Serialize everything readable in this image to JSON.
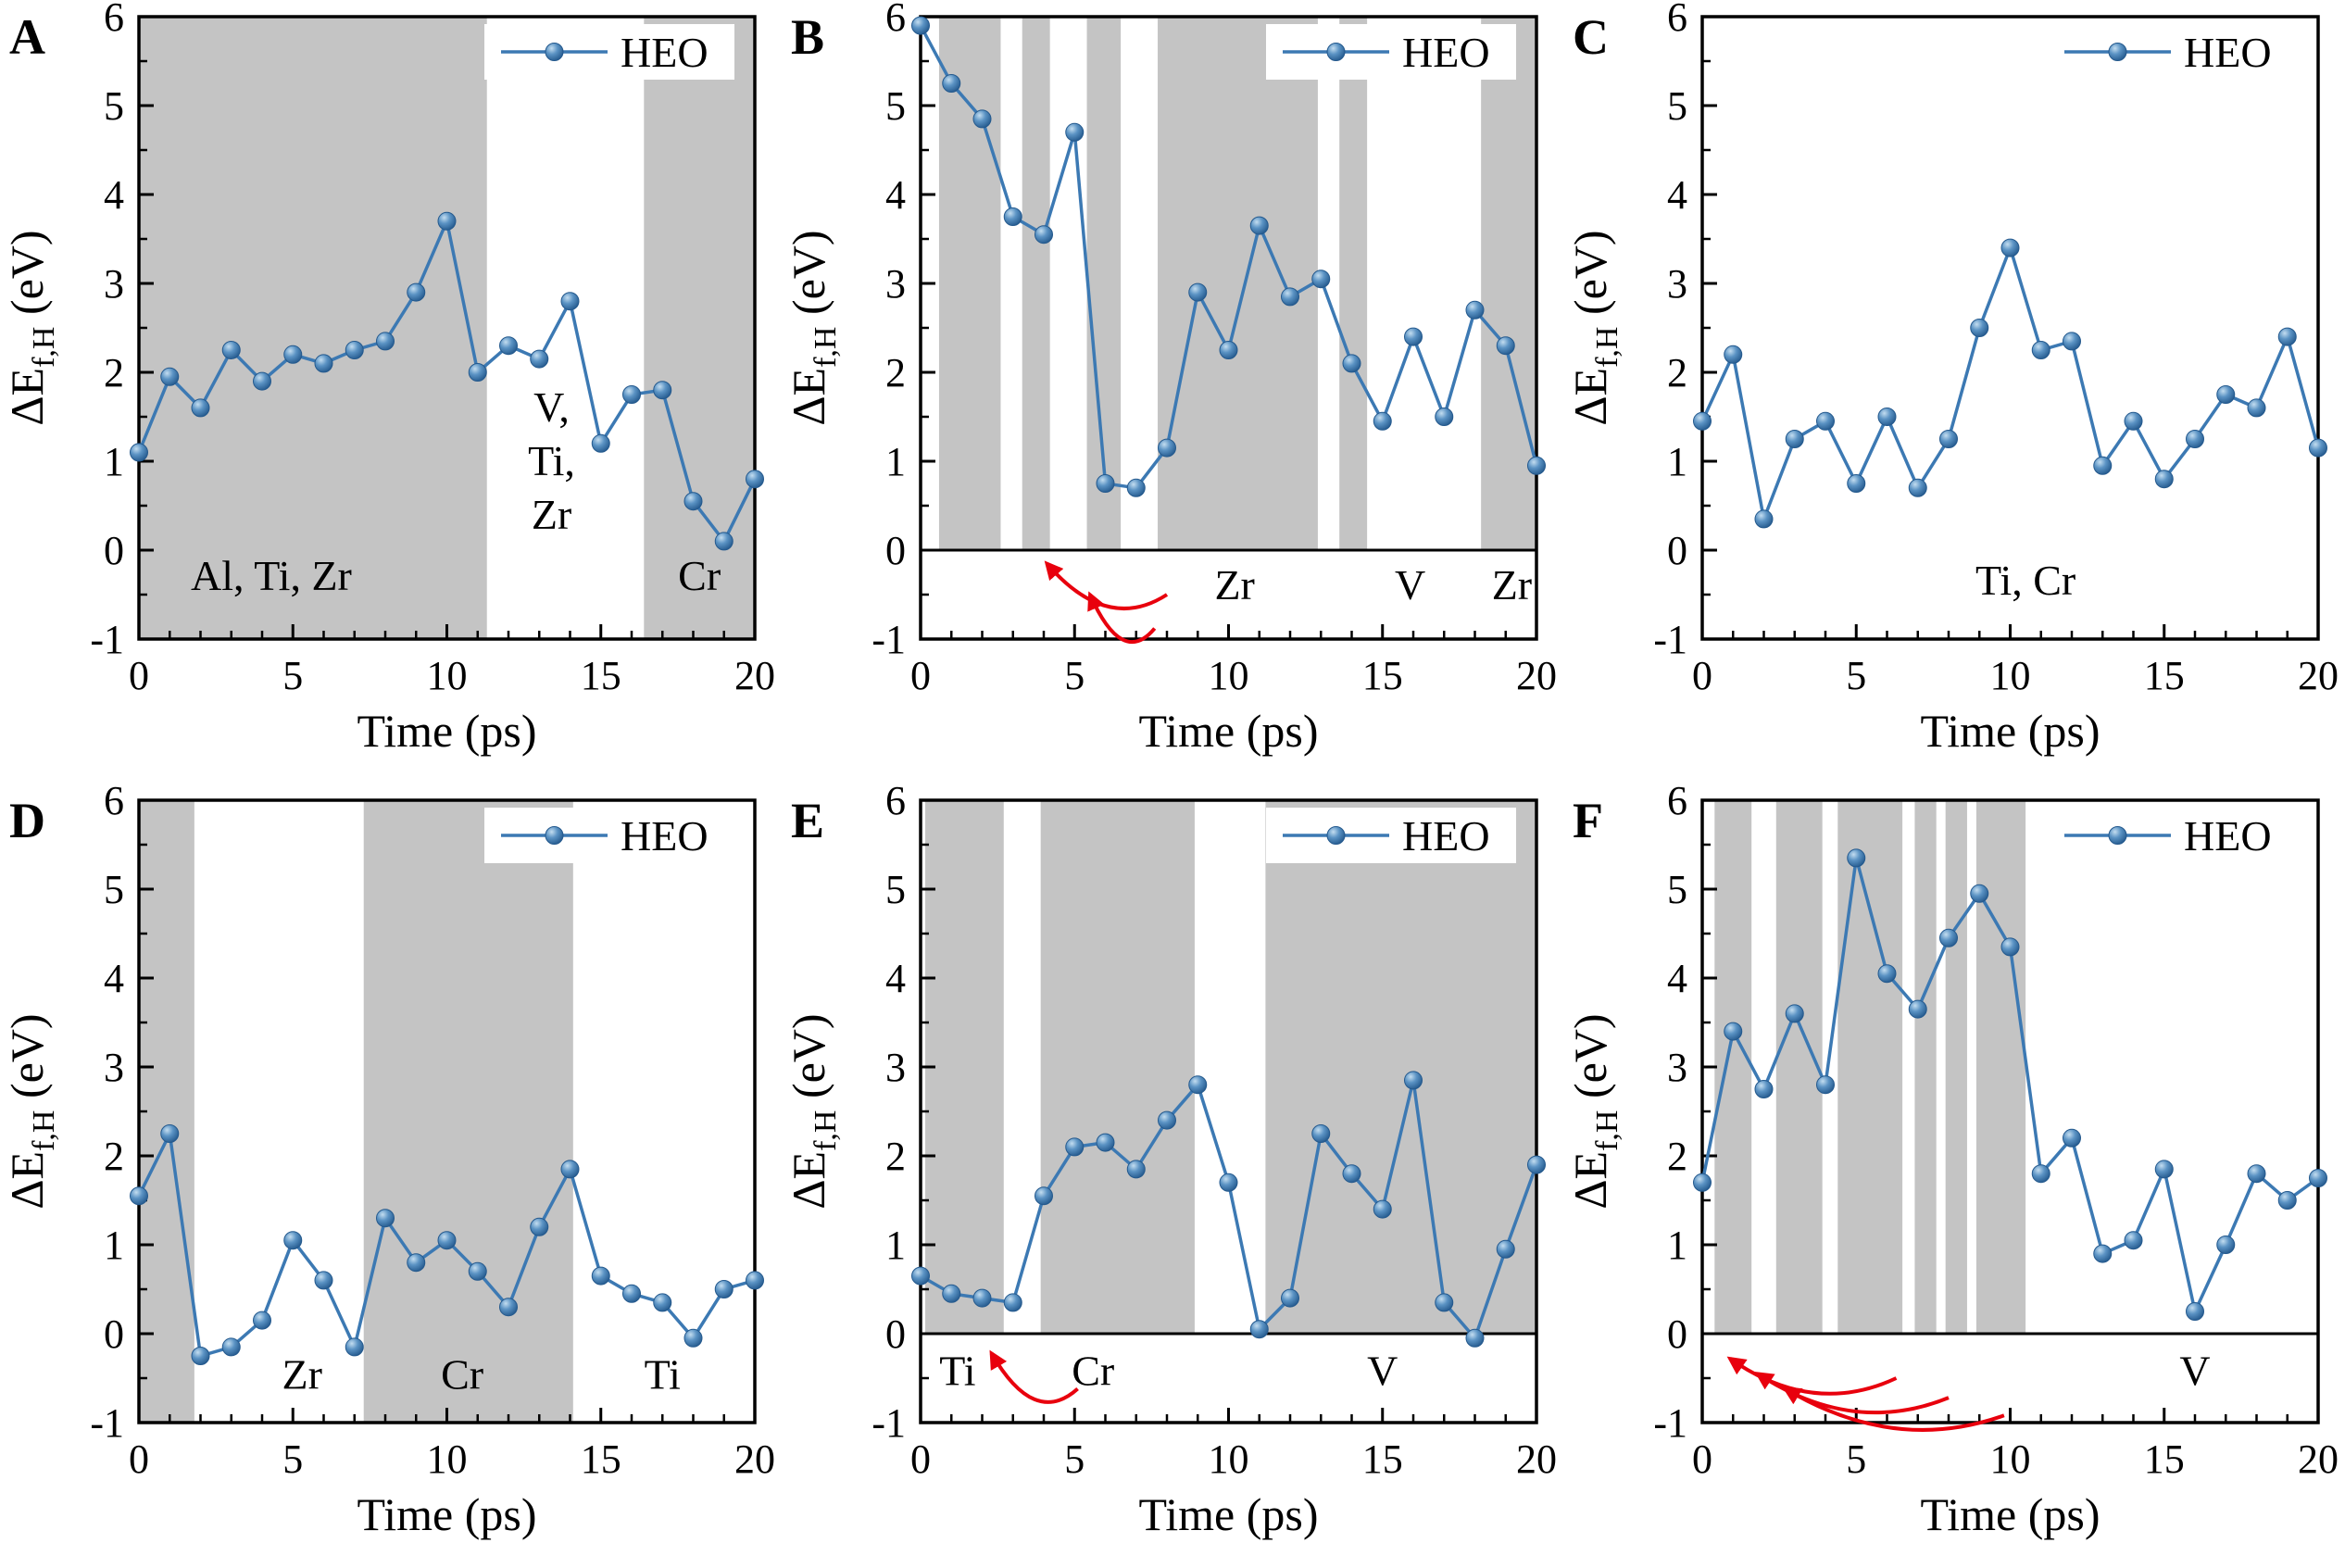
{
  "figure": {
    "legend_label": "HEO",
    "xlabel": "Time (ps)",
    "ylabel": {
      "prefix": "ΔE",
      "subscript": "f,H",
      "suffix": " (eV)"
    },
    "xlim": [
      0,
      20
    ],
    "ylim": [
      -1,
      6
    ],
    "xticks": [
      0,
      5,
      10,
      15,
      20
    ],
    "yticks": [
      -1,
      0,
      1,
      2,
      3,
      4,
      5,
      6
    ],
    "x_minor_step": 1,
    "y_minor_step": 0.5,
    "x_values": [
      0,
      1,
      2,
      3,
      4,
      5,
      6,
      7,
      8,
      9,
      10,
      11,
      12,
      13,
      14,
      15,
      16,
      17,
      18,
      19,
      20
    ],
    "colors": {
      "line": "#3c79b3",
      "marker_dark": "#24598d",
      "marker_mid": "#5b93c4",
      "marker_light": "#c3ddf0",
      "band": "#c4c4c4",
      "arrow": "#e8000d",
      "axis": "#000000",
      "background": "#ffffff"
    }
  },
  "chart_data": [
    {
      "panel": "A",
      "type": "line",
      "series": [
        {
          "name": "HEO",
          "values": [
            1.1,
            1.95,
            1.6,
            2.25,
            1.9,
            2.2,
            2.1,
            2.25,
            2.35,
            2.9,
            3.7,
            2.0,
            2.3,
            2.15,
            2.8,
            1.2,
            1.75,
            1.8,
            0.55,
            0.1,
            0.8
          ]
        }
      ],
      "bands": [
        {
          "from": 0,
          "to": 11.3
        },
        {
          "from": 16.4,
          "to": 20
        }
      ],
      "band_bottom": -1,
      "zero_line": false,
      "region_labels": [
        {
          "x": 4.3,
          "y": -0.45,
          "lines": [
            "Al, Ti, Zr"
          ]
        },
        {
          "x": 13.4,
          "y": 1.45,
          "lines": [
            "V,",
            "Ti,",
            "Zr"
          ]
        },
        {
          "x": 18.2,
          "y": -0.45,
          "lines": [
            "Cr"
          ]
        }
      ],
      "arrows": []
    },
    {
      "panel": "B",
      "type": "line",
      "series": [
        {
          "name": "HEO",
          "values": [
            5.9,
            5.25,
            4.85,
            3.75,
            3.55,
            4.7,
            0.75,
            0.7,
            1.15,
            2.9,
            2.25,
            3.65,
            2.85,
            3.05,
            2.1,
            1.45,
            2.4,
            1.5,
            2.7,
            2.3,
            0.95
          ]
        }
      ],
      "bands": [
        {
          "from": 0.6,
          "to": 2.6
        },
        {
          "from": 3.3,
          "to": 4.2
        },
        {
          "from": 5.4,
          "to": 6.5
        },
        {
          "from": 7.7,
          "to": 12.9
        },
        {
          "from": 13.6,
          "to": 14.5
        },
        {
          "from": 18.2,
          "to": 20
        }
      ],
      "band_bottom": 0,
      "zero_line": true,
      "region_labels": [
        {
          "x": 10.2,
          "y": -0.55,
          "lines": [
            "Zr"
          ]
        },
        {
          "x": 15.9,
          "y": -0.55,
          "lines": [
            "V"
          ]
        },
        {
          "x": 19.2,
          "y": -0.55,
          "lines": [
            "Zr"
          ]
        }
      ],
      "arrows": [
        {
          "from": [
            8.0,
            -0.5
          ],
          "to": [
            4.1,
            -0.15
          ]
        },
        {
          "from": [
            7.6,
            -0.88
          ],
          "to": [
            5.5,
            -0.5
          ]
        }
      ]
    },
    {
      "panel": "C",
      "type": "line",
      "series": [
        {
          "name": "HEO",
          "values": [
            1.45,
            2.2,
            0.35,
            1.25,
            1.45,
            0.75,
            1.5,
            0.7,
            1.25,
            2.5,
            3.4,
            2.25,
            2.35,
            0.95,
            1.45,
            0.8,
            1.25,
            1.75,
            1.6,
            2.4,
            1.15
          ]
        }
      ],
      "bands": [],
      "band_bottom": -1,
      "zero_line": false,
      "region_labels": [
        {
          "x": 10.5,
          "y": -0.5,
          "lines": [
            "Ti, Cr"
          ]
        }
      ],
      "arrows": []
    },
    {
      "panel": "D",
      "type": "line",
      "series": [
        {
          "name": "HEO",
          "values": [
            1.55,
            2.25,
            -0.25,
            -0.15,
            0.15,
            1.05,
            0.6,
            -0.15,
            1.3,
            0.8,
            1.05,
            0.7,
            0.3,
            1.2,
            1.85,
            0.65,
            0.45,
            0.35,
            -0.05,
            0.5,
            0.6
          ]
        }
      ],
      "bands": [
        {
          "from": 0,
          "to": 1.8
        },
        {
          "from": 7.3,
          "to": 14.1
        }
      ],
      "band_bottom": -1,
      "zero_line": false,
      "region_labels": [
        {
          "x": 5.3,
          "y": -0.62,
          "lines": [
            "Zr"
          ]
        },
        {
          "x": 10.5,
          "y": -0.62,
          "lines": [
            "Cr"
          ]
        },
        {
          "x": 17.0,
          "y": -0.62,
          "lines": [
            "Ti"
          ]
        }
      ],
      "arrows": []
    },
    {
      "panel": "E",
      "type": "line",
      "series": [
        {
          "name": "HEO",
          "values": [
            0.65,
            0.45,
            0.4,
            0.35,
            1.55,
            2.1,
            2.15,
            1.85,
            2.4,
            2.8,
            1.7,
            0.05,
            0.4,
            2.25,
            1.8,
            1.4,
            2.85,
            0.35,
            -0.05,
            0.95,
            1.9
          ]
        }
      ],
      "bands": [
        {
          "from": 0.15,
          "to": 2.7
        },
        {
          "from": 3.9,
          "to": 8.9
        },
        {
          "from": 11.2,
          "to": 20
        }
      ],
      "band_bottom": 0,
      "zero_line": true,
      "region_labels": [
        {
          "x": 1.2,
          "y": -0.58,
          "lines": [
            "Ti"
          ]
        },
        {
          "x": 5.6,
          "y": -0.58,
          "lines": [
            "Cr"
          ]
        },
        {
          "x": 15.0,
          "y": -0.58,
          "lines": [
            "V"
          ]
        }
      ],
      "arrows": [
        {
          "from": [
            5.1,
            -0.62
          ],
          "to": [
            2.3,
            -0.22
          ]
        }
      ]
    },
    {
      "panel": "F",
      "type": "line",
      "series": [
        {
          "name": "HEO",
          "values": [
            1.7,
            3.4,
            2.75,
            3.6,
            2.8,
            5.35,
            4.05,
            3.65,
            4.45,
            4.95,
            4.35,
            1.8,
            2.2,
            0.9,
            1.05,
            1.85,
            0.25,
            1.0,
            1.8,
            1.5,
            1.75
          ]
        }
      ],
      "bands": [
        {
          "from": 0.4,
          "to": 1.6
        },
        {
          "from": 2.4,
          "to": 3.9
        },
        {
          "from": 4.4,
          "to": 6.5
        },
        {
          "from": 6.9,
          "to": 7.6
        },
        {
          "from": 7.9,
          "to": 8.6
        },
        {
          "from": 8.9,
          "to": 10.5
        }
      ],
      "band_bottom": 0,
      "zero_line": true,
      "region_labels": [
        {
          "x": 16.0,
          "y": -0.58,
          "lines": [
            "V"
          ]
        }
      ],
      "arrows": [
        {
          "from": [
            6.3,
            -0.5
          ],
          "to": [
            0.9,
            -0.28
          ]
        },
        {
          "from": [
            8.0,
            -0.72
          ],
          "to": [
            1.8,
            -0.45
          ]
        },
        {
          "from": [
            9.8,
            -0.92
          ],
          "to": [
            2.7,
            -0.62
          ]
        }
      ]
    }
  ]
}
